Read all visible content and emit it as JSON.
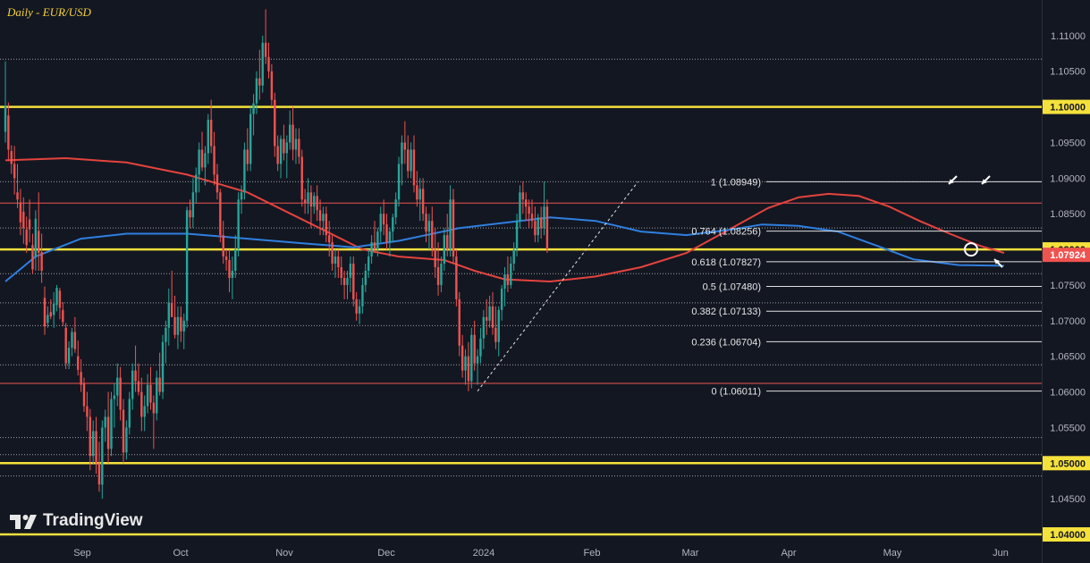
{
  "chart_title": "Daily - EUR/USD",
  "brand": "TradingView",
  "colors": {
    "background": "#131722",
    "up": "#26a69a",
    "down": "#ef5350",
    "ma_red": "#e5433d",
    "ma_blue": "#2f7fe0",
    "yellow": "#f5e13b",
    "fib": "#e0e0e0",
    "grid_dotted": "#cfcfcf"
  },
  "chart_data": {
    "type": "candlestick",
    "title": "Daily - EUR/USD",
    "ylim": [
      1.0395,
      1.1145
    ],
    "y_ticks": [
      1.04,
      1.045,
      1.05,
      1.055,
      1.06,
      1.065,
      1.07,
      1.075,
      1.08,
      1.085,
      1.09,
      1.095,
      1.1,
      1.105,
      1.11
    ],
    "y_tick_labels": [
      "1.04000",
      "1.04500",
      "1.05000",
      "1.05500",
      "1.06000",
      "1.06500",
      "1.07000",
      "1.07500",
      "1.08000",
      "1.08500",
      "1.09000",
      "1.09500",
      "1.10000",
      "1.10500",
      "1.11000"
    ],
    "x_labels": [
      "Sep",
      "Oct",
      "Nov",
      "Dec",
      "2024",
      "Feb",
      "Mar",
      "Apr",
      "May",
      "Jun"
    ],
    "last_price": 1.07924,
    "last_price_label": "1.07924",
    "yellow_levels": [
      1.1,
      1.08,
      1.05,
      1.04
    ],
    "red_levels": [
      1.0865,
      1.0612
    ],
    "dotted_levels": [
      1.1067,
      1.0895,
      1.083,
      1.0766,
      1.0725,
      1.0693,
      1.0638,
      1.0536,
      1.0512,
      1.0482
    ],
    "fib_levels": [
      {
        "label": "1 (1.08949)",
        "value": 1.08949
      },
      {
        "label": "0.764 (1.08256)",
        "value": 1.08256
      },
      {
        "label": "0.618 (1.07827)",
        "value": 1.07827
      },
      {
        "label": "0.5 (1.07480)",
        "value": 1.0748
      },
      {
        "label": "0.382 (1.07133)",
        "value": 1.07133
      },
      {
        "label": "0.236 (1.06704)",
        "value": 1.06704
      },
      {
        "label": "0 (1.06011)",
        "value": 1.06011
      }
    ],
    "moving_averages": [
      {
        "color": "#e5433d",
        "points": [
          [
            0,
            1.0925
          ],
          [
            20,
            1.0928
          ],
          [
            40,
            1.0922
          ],
          [
            60,
            1.0905
          ],
          [
            80,
            1.088
          ],
          [
            100,
            1.0838
          ],
          [
            118,
            1.08
          ],
          [
            130,
            1.079
          ],
          [
            145,
            1.0785
          ],
          [
            155,
            1.077
          ],
          [
            165,
            1.0758
          ],
          [
            180,
            1.0755
          ],
          [
            195,
            1.0762
          ],
          [
            210,
            1.0775
          ],
          [
            225,
            1.0795
          ],
          [
            240,
            1.083
          ],
          [
            252,
            1.0858
          ],
          [
            262,
            1.0873
          ],
          [
            272,
            1.0878
          ],
          [
            282,
            1.0875
          ],
          [
            292,
            1.086
          ],
          [
            302,
            1.084
          ],
          [
            312,
            1.0822
          ],
          [
            322,
            1.0805
          ],
          [
            330,
            1.0795
          ]
        ]
      },
      {
        "color": "#2f7fe0",
        "points": [
          [
            0,
            1.0755
          ],
          [
            10,
            1.079
          ],
          [
            25,
            1.0815
          ],
          [
            40,
            1.0822
          ],
          [
            60,
            1.0822
          ],
          [
            80,
            1.0815
          ],
          [
            100,
            1.0808
          ],
          [
            115,
            1.0803
          ],
          [
            130,
            1.0812
          ],
          [
            150,
            1.083
          ],
          [
            170,
            1.084
          ],
          [
            180,
            1.0845
          ],
          [
            195,
            1.084
          ],
          [
            210,
            1.0825
          ],
          [
            225,
            1.082
          ],
          [
            240,
            1.0828
          ],
          [
            250,
            1.0835
          ],
          [
            262,
            1.0833
          ],
          [
            275,
            1.0825
          ],
          [
            288,
            1.0805
          ],
          [
            300,
            1.0786
          ],
          [
            315,
            1.0778
          ],
          [
            330,
            1.0777
          ]
        ]
      }
    ],
    "candles": [
      [
        1.0965,
        1.1064,
        1.095,
        1.1002
      ],
      [
        1.0988,
        1.1006,
        1.0924,
        1.094
      ],
      [
        1.0938,
        1.0946,
        1.0906,
        1.092
      ],
      [
        1.092,
        1.0945,
        1.0877,
        1.09
      ],
      [
        1.088,
        1.092,
        1.0858,
        1.087
      ],
      [
        1.0866,
        1.0885,
        1.082,
        1.0838
      ],
      [
        1.0853,
        1.0873,
        1.0808,
        1.083
      ],
      [
        1.0828,
        1.0846,
        1.0795,
        1.0806
      ],
      [
        1.0842,
        1.087,
        1.081,
        1.0828
      ],
      [
        1.0806,
        1.0822,
        1.0766,
        1.0772
      ],
      [
        1.079,
        1.0855,
        1.077,
        1.0843
      ],
      [
        1.0826,
        1.088,
        1.077,
        1.0795
      ],
      [
        1.0796,
        1.0822,
        1.0753,
        1.077
      ],
      [
        1.0732,
        1.0748,
        1.068,
        1.0692
      ],
      [
        1.0697,
        1.072,
        1.069,
        1.0708
      ],
      [
        1.0712,
        1.073,
        1.0702,
        1.0706
      ],
      [
        1.0708,
        1.074,
        1.069,
        1.0724
      ],
      [
        1.0722,
        1.075,
        1.0713,
        1.0746
      ],
      [
        1.0742,
        1.0746,
        1.0702,
        1.0718
      ],
      [
        1.0715,
        1.0726,
        1.0692,
        1.0698
      ],
      [
        1.069,
        1.0697,
        1.0632,
        1.064
      ],
      [
        1.064,
        1.0671,
        1.0632,
        1.0662
      ],
      [
        1.0662,
        1.069,
        1.065,
        1.0684
      ],
      [
        1.0684,
        1.0705,
        1.0655,
        1.066
      ],
      [
        1.065,
        1.0672,
        1.0623,
        1.0631
      ],
      [
        1.0628,
        1.0646,
        1.06,
        1.061
      ],
      [
        1.0612,
        1.062,
        1.0572,
        1.058
      ],
      [
        1.058,
        1.06,
        1.0545,
        1.0565
      ],
      [
        1.0565,
        1.0576,
        1.049,
        1.051
      ],
      [
        1.051,
        1.056,
        1.0498,
        1.0545
      ],
      [
        1.0545,
        1.0565,
        1.0485,
        1.05
      ],
      [
        1.05,
        1.053,
        1.046,
        1.047
      ],
      [
        1.047,
        1.056,
        1.045,
        1.055
      ],
      [
        1.055,
        1.0575,
        1.053,
        1.0565
      ],
      [
        1.0565,
        1.06,
        1.05,
        1.052
      ],
      [
        1.052,
        1.06,
        1.051,
        1.059
      ],
      [
        1.059,
        1.0612,
        1.055,
        1.0595
      ],
      [
        1.0595,
        1.064,
        1.058,
        1.062
      ],
      [
        1.062,
        1.0635,
        1.056,
        1.0575
      ],
      [
        1.0575,
        1.059,
        1.05,
        1.0515
      ],
      [
        1.0515,
        1.056,
        1.0505,
        1.055
      ],
      [
        1.055,
        1.06,
        1.054,
        1.059
      ],
      [
        1.059,
        1.064,
        1.0575,
        1.063
      ],
      [
        1.063,
        1.0665,
        1.06,
        1.0615
      ],
      [
        1.0615,
        1.064,
        1.0595,
        1.06
      ],
      [
        1.06,
        1.062,
        1.0545,
        1.0565
      ],
      [
        1.0565,
        1.0595,
        1.0545,
        1.058
      ],
      [
        1.058,
        1.0625,
        1.057,
        1.061
      ],
      [
        1.061,
        1.0635,
        1.0575,
        1.0585
      ],
      [
        1.0585,
        1.0595,
        1.052,
        1.057
      ],
      [
        1.057,
        1.063,
        1.056,
        1.062
      ],
      [
        1.062,
        1.0655,
        1.0595,
        1.06
      ],
      [
        1.06,
        1.068,
        1.059,
        1.067
      ],
      [
        1.067,
        1.07,
        1.064,
        1.069
      ],
      [
        1.069,
        1.0745,
        1.0665,
        1.0725
      ],
      [
        1.0725,
        1.077,
        1.0705,
        1.0705
      ],
      [
        1.0705,
        1.0735,
        1.0675,
        1.068
      ],
      [
        1.068,
        1.072,
        1.066,
        1.0705
      ],
      [
        1.0705,
        1.072,
        1.067,
        1.0685
      ],
      [
        1.0685,
        1.071,
        1.066,
        1.07
      ],
      [
        1.07,
        1.086,
        1.069,
        1.0855
      ],
      [
        1.0855,
        1.087,
        1.083,
        1.0845
      ],
      [
        1.0845,
        1.09,
        1.083,
        1.088
      ],
      [
        1.088,
        1.0915,
        1.0865,
        1.0905
      ],
      [
        1.0905,
        1.095,
        1.088,
        1.094
      ],
      [
        1.094,
        1.0965,
        1.091,
        1.0915
      ],
      [
        1.0915,
        1.0945,
        1.089,
        1.0935
      ],
      [
        1.0935,
        1.099,
        1.092,
        1.0982
      ],
      [
        1.0982,
        1.101,
        1.0935,
        1.0945
      ],
      [
        1.0945,
        1.0965,
        1.089,
        1.0905
      ],
      [
        1.0905,
        1.092,
        1.087,
        1.088
      ],
      [
        1.088,
        1.0885,
        1.081,
        1.082
      ],
      [
        1.082,
        1.084,
        1.078,
        1.079
      ],
      [
        1.079,
        1.08,
        1.077,
        1.0785
      ],
      [
        1.0785,
        1.08,
        1.074,
        1.076
      ],
      [
        1.076,
        1.079,
        1.073,
        1.077
      ],
      [
        1.077,
        1.082,
        1.076,
        1.08
      ],
      [
        1.08,
        1.088,
        1.079,
        1.087
      ],
      [
        1.087,
        1.089,
        1.085,
        1.088
      ],
      [
        1.088,
        1.095,
        1.087,
        1.094
      ],
      [
        1.094,
        1.097,
        1.091,
        1.092
      ],
      [
        1.092,
        1.1,
        1.091,
        1.099
      ],
      [
        1.099,
        1.1018,
        1.096,
        1.1005
      ],
      [
        1.1005,
        1.105,
        1.099,
        1.104
      ],
      [
        1.104,
        1.108,
        1.101,
        1.103
      ],
      [
        1.103,
        1.11,
        1.102,
        1.109
      ],
      [
        1.109,
        1.1137,
        1.106,
        1.107
      ],
      [
        1.107,
        1.109,
        1.104,
        1.105
      ],
      [
        1.105,
        1.106,
        1.1,
        1.101
      ],
      [
        1.101,
        1.102,
        1.093,
        1.0945
      ],
      [
        1.0945,
        1.096,
        1.091,
        1.092
      ],
      [
        1.092,
        1.096,
        1.09,
        1.0955
      ],
      [
        1.0955,
        1.0975,
        1.0925,
        1.0935
      ],
      [
        1.0935,
        1.096,
        1.09,
        1.095
      ],
      [
        1.095,
        1.0995,
        1.094,
        1.0975
      ],
      [
        1.0975,
        1.1,
        1.0925,
        1.094
      ],
      [
        1.094,
        1.097,
        1.092,
        1.0955
      ],
      [
        1.0955,
        1.097,
        1.092,
        1.093
      ],
      [
        1.093,
        1.094,
        1.086,
        1.087
      ],
      [
        1.087,
        1.0885,
        1.085,
        1.0865
      ],
      [
        1.0865,
        1.09,
        1.085,
        1.088
      ],
      [
        1.088,
        1.089,
        1.083,
        1.086
      ],
      [
        1.086,
        1.088,
        1.085,
        1.0875
      ],
      [
        1.0875,
        1.089,
        1.084,
        1.0855
      ],
      [
        1.0855,
        1.087,
        1.082,
        1.084
      ],
      [
        1.084,
        1.086,
        1.082,
        1.085
      ],
      [
        1.085,
        1.086,
        1.081,
        1.082
      ],
      [
        1.082,
        1.084,
        1.079,
        1.081
      ],
      [
        1.081,
        1.082,
        1.077,
        1.078
      ],
      [
        1.078,
        1.08,
        1.076,
        1.079
      ],
      [
        1.079,
        1.08,
        1.076,
        1.0775
      ],
      [
        1.0775,
        1.079,
        1.075,
        1.076
      ],
      [
        1.076,
        1.077,
        1.073,
        1.075
      ],
      [
        1.075,
        1.077,
        1.073,
        1.076
      ],
      [
        1.076,
        1.079,
        1.074,
        1.078
      ],
      [
        1.078,
        1.079,
        1.072,
        1.073
      ],
      [
        1.073,
        1.074,
        1.07,
        1.071
      ],
      [
        1.071,
        1.073,
        1.0695,
        1.072
      ],
      [
        1.072,
        1.076,
        1.071,
        1.075
      ],
      [
        1.075,
        1.078,
        1.074,
        1.077
      ],
      [
        1.077,
        1.08,
        1.076,
        1.079
      ],
      [
        1.079,
        1.082,
        1.078,
        1.081
      ],
      [
        1.081,
        1.084,
        1.0795,
        1.08
      ],
      [
        1.08,
        1.083,
        1.079,
        1.0825
      ],
      [
        1.0825,
        1.086,
        1.081,
        1.085
      ],
      [
        1.085,
        1.087,
        1.082,
        1.0835
      ],
      [
        1.0835,
        1.085,
        1.08,
        1.081
      ],
      [
        1.081,
        1.083,
        1.079,
        1.0825
      ],
      [
        1.0825,
        1.085,
        1.081,
        1.0845
      ],
      [
        1.0845,
        1.088,
        1.0835,
        1.087
      ],
      [
        1.087,
        1.093,
        1.086,
        1.092
      ],
      [
        1.092,
        1.096,
        1.089,
        1.095
      ],
      [
        1.095,
        1.098,
        1.092,
        1.094
      ],
      [
        1.094,
        1.096,
        1.09,
        1.091
      ],
      [
        1.091,
        1.095,
        1.09,
        1.094
      ],
      [
        1.094,
        1.096,
        1.088,
        1.089
      ],
      [
        1.089,
        1.091,
        1.086,
        1.087
      ],
      [
        1.087,
        1.09,
        1.084,
        1.0885
      ],
      [
        1.0885,
        1.09,
        1.084,
        1.085
      ],
      [
        1.085,
        1.086,
        1.081,
        1.0825
      ],
      [
        1.0825,
        1.085,
        1.08,
        1.084
      ],
      [
        1.084,
        1.086,
        1.079,
        1.08
      ],
      [
        1.08,
        1.083,
        1.076,
        1.0775
      ],
      [
        1.0775,
        1.081,
        1.0735,
        1.075
      ],
      [
        1.075,
        1.079,
        1.074,
        1.078
      ],
      [
        1.078,
        1.083,
        1.077,
        1.082
      ],
      [
        1.082,
        1.085,
        1.079,
        1.08
      ],
      [
        1.08,
        1.089,
        1.079,
        1.087
      ],
      [
        1.087,
        1.0885,
        1.078,
        1.079
      ],
      [
        1.079,
        1.08,
        1.072,
        1.073
      ],
      [
        1.073,
        1.074,
        1.065,
        1.0665
      ],
      [
        1.0665,
        1.068,
        1.062,
        1.063
      ],
      [
        1.063,
        1.066,
        1.061,
        1.065
      ],
      [
        1.065,
        1.067,
        1.0601,
        1.0615
      ],
      [
        1.0615,
        1.069,
        1.0605,
        1.068
      ],
      [
        1.068,
        1.07,
        1.063,
        1.064
      ],
      [
        1.064,
        1.066,
        1.061,
        1.065
      ],
      [
        1.065,
        1.069,
        1.064,
        1.0675
      ],
      [
        1.0675,
        1.0715,
        1.066,
        1.0705
      ],
      [
        1.0705,
        1.073,
        1.068,
        1.07
      ],
      [
        1.07,
        1.0735,
        1.069,
        1.072
      ],
      [
        1.072,
        1.074,
        1.068,
        1.069
      ],
      [
        1.069,
        1.072,
        1.066,
        1.067
      ],
      [
        1.067,
        1.072,
        1.065,
        1.0715
      ],
      [
        1.0715,
        1.075,
        1.07,
        1.0745
      ],
      [
        1.0745,
        1.0775,
        1.072,
        1.0765
      ],
      [
        1.0765,
        1.079,
        1.074,
        1.075
      ],
      [
        1.075,
        1.079,
        1.0745,
        1.078
      ],
      [
        1.078,
        1.081,
        1.077,
        1.08
      ],
      [
        1.08,
        1.085,
        1.079,
        1.084
      ],
      [
        1.084,
        1.089,
        1.083,
        1.088
      ],
      [
        1.088,
        1.0895,
        1.085,
        1.087
      ],
      [
        1.087,
        1.088,
        1.084,
        1.086
      ],
      [
        1.086,
        1.087,
        1.083,
        1.085
      ],
      [
        1.085,
        1.087,
        1.083,
        1.084
      ],
      [
        1.084,
        1.086,
        1.081,
        1.082
      ],
      [
        1.082,
        1.085,
        1.081,
        1.0845
      ],
      [
        1.0845,
        1.086,
        1.0815,
        1.083
      ],
      [
        1.083,
        1.0895,
        1.082,
        1.086
      ],
      [
        1.086,
        1.087,
        1.0795,
        1.08
      ]
    ]
  }
}
